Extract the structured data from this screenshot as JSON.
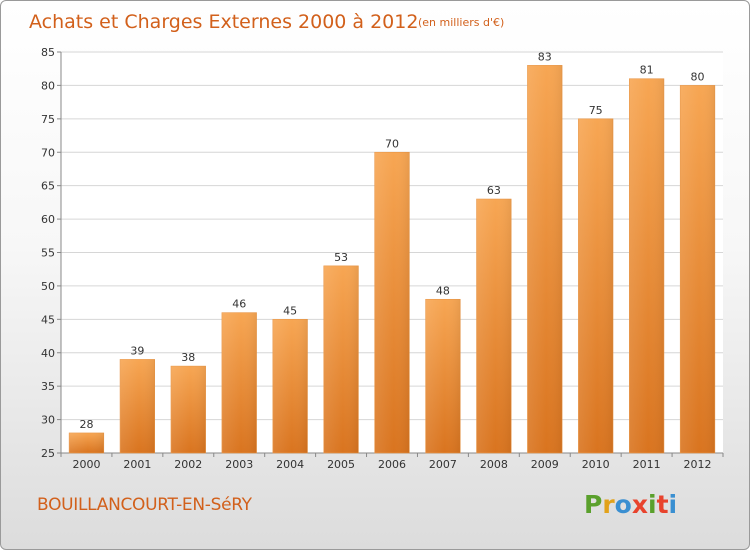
{
  "chart_data": {
    "type": "bar",
    "title": "Achats et Charges Externes 2000 à 2012",
    "subtitle": "(en milliers d'€)",
    "categories": [
      "2000",
      "2001",
      "2002",
      "2003",
      "2004",
      "2005",
      "2006",
      "2007",
      "2008",
      "2009",
      "2010",
      "2011",
      "2012"
    ],
    "values": [
      28,
      39,
      38,
      46,
      45,
      53,
      70,
      48,
      63,
      83,
      75,
      81,
      80
    ],
    "ylim": [
      25,
      85
    ],
    "yticks": [
      25,
      30,
      35,
      40,
      45,
      50,
      55,
      60,
      65,
      70,
      75,
      80,
      85
    ],
    "grid": true,
    "bar_color": "#f5a04c",
    "bar_color_dark": "#d9741f",
    "xlabel": "",
    "ylabel": ""
  },
  "footer": {
    "commune": "BOUILLANCOURT-EN-SéRY",
    "logo_letters": [
      "P",
      "r",
      "o",
      "x",
      "i",
      "t",
      "i"
    ],
    "logo_colors": [
      "#5aa02c",
      "#e2a21a",
      "#3a8fd1",
      "#e8432d",
      "#5aa02c",
      "#e8432d",
      "#3a8fd1"
    ]
  }
}
